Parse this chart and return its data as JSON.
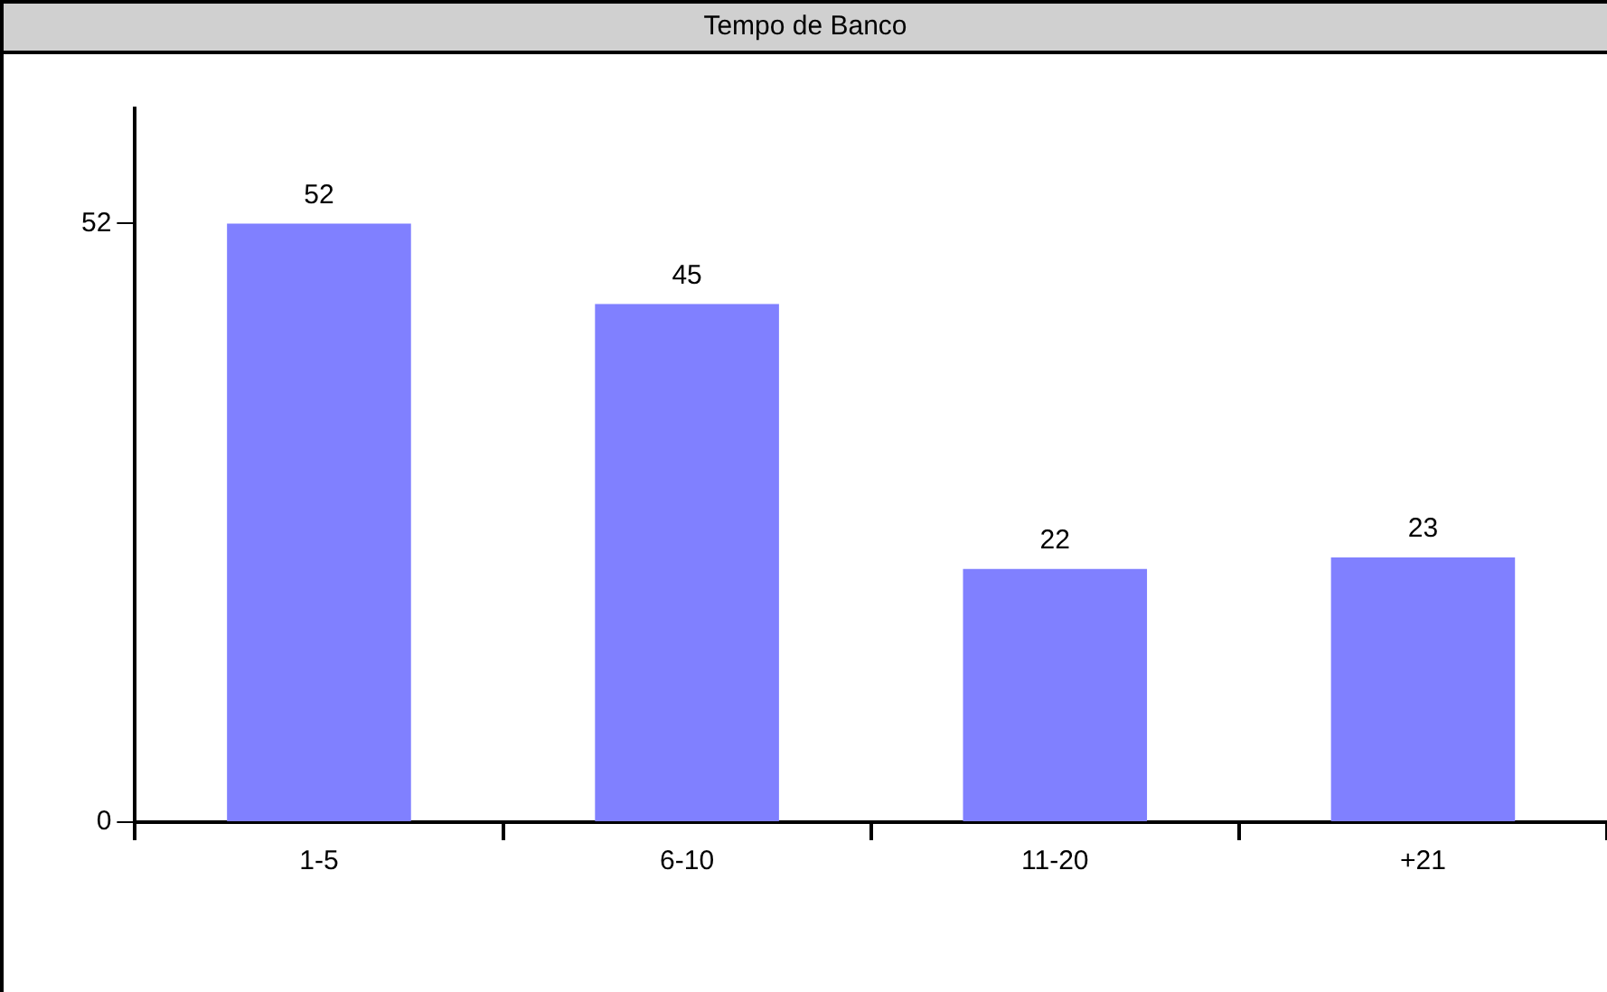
{
  "chart_data": {
    "type": "bar",
    "title": "Tempo de Banco",
    "categories": [
      "1-5",
      "6-10",
      "11-20",
      "+21"
    ],
    "values": [
      52,
      45,
      22,
      23
    ],
    "color": "#8080ff",
    "ylim": [
      0,
      62
    ],
    "yticks": [
      0,
      52
    ],
    "data_labels": true,
    "grid": false,
    "legend": false
  }
}
